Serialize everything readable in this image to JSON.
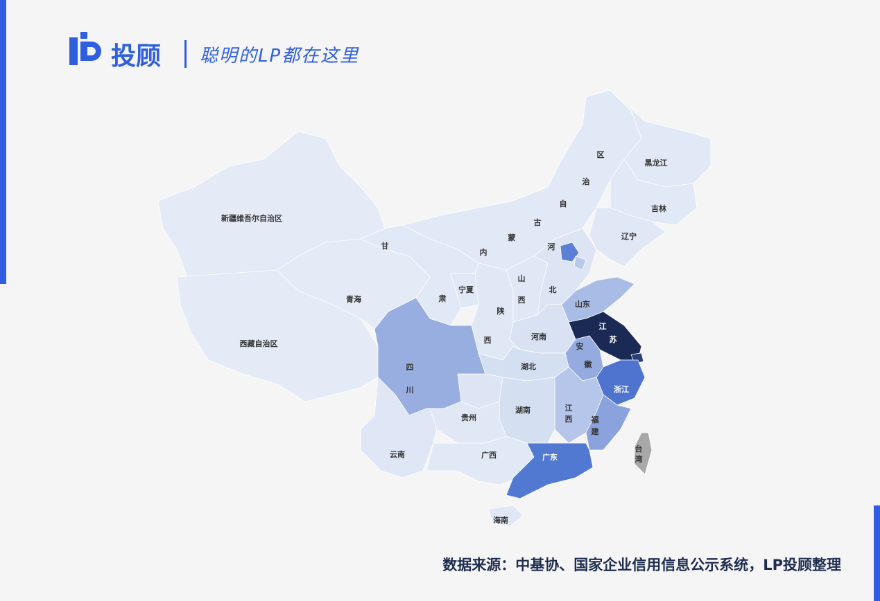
{
  "header": {
    "brand": "投顾",
    "tagline": "聪明的LP都在这里"
  },
  "map": {
    "regions": [
      {
        "labels": [
          "新疆维吾尔自治区"
        ],
        "color": "#e4eaf6"
      },
      {
        "labels": [
          "西藏自治区"
        ],
        "color": "#e4eaf6"
      },
      {
        "labels": [
          "青海"
        ],
        "color": "#e4eaf6"
      },
      {
        "labels": [
          "甘",
          "肃"
        ],
        "color": "#e2e9f6"
      },
      {
        "labels": [
          "内",
          "蒙",
          "古",
          "自",
          "治",
          "区"
        ],
        "color": "#e2e9f6"
      },
      {
        "labels": [
          "黑龙江"
        ],
        "color": "#e2e9f6"
      },
      {
        "labels": [
          "吉林"
        ],
        "color": "#e2e9f6"
      },
      {
        "labels": [
          "辽宁"
        ],
        "color": "#e0e7f5"
      },
      {
        "labels": [
          "宁夏"
        ],
        "color": "#e0e7f5"
      },
      {
        "labels": [
          "陕",
          "西"
        ],
        "color": "#e0e7f5"
      },
      {
        "labels": [
          "山",
          "西"
        ],
        "color": "#e0e7f5"
      },
      {
        "labels": [
          "河",
          "北"
        ],
        "color": "#dde5f4"
      },
      {
        "labels": [],
        "color": "#5b7fd6"
      },
      {
        "labels": [],
        "color": "#b9c9ec"
      },
      {
        "labels": [
          "山东"
        ],
        "color": "#a9bce6"
      },
      {
        "labels": [
          "河南"
        ],
        "color": "#d9e2f3"
      },
      {
        "labels": [
          "江",
          "苏"
        ],
        "color": "#1a2a55"
      },
      {
        "labels": [],
        "color": "#2a3f7a"
      },
      {
        "labels": [
          "安",
          "徽"
        ],
        "color": "#95abe0"
      },
      {
        "labels": [
          "湖北"
        ],
        "color": "#d5dff2"
      },
      {
        "labels": [],
        "color": "#dde5f4"
      },
      {
        "labels": [
          "四",
          "川"
        ],
        "color": "#98ade0"
      },
      {
        "labels": [
          "浙江"
        ],
        "color": "#4f74cf"
      },
      {
        "labels": [
          "江",
          "西"
        ],
        "color": "#b5c6ea"
      },
      {
        "labels": [
          "福",
          "建"
        ],
        "color": "#8aa3dd"
      },
      {
        "labels": [
          "湖南"
        ],
        "color": "#d5dff2"
      },
      {
        "labels": [
          "贵州"
        ],
        "color": "#e0e7f5"
      },
      {
        "labels": [
          "云南"
        ],
        "color": "#dfe6f5"
      },
      {
        "labels": [
          "广西"
        ],
        "color": "#e2e9f6"
      },
      {
        "labels": [
          "广东"
        ],
        "color": "#5279d2"
      },
      {
        "labels": [
          "海南"
        ],
        "color": "#e0e7f5"
      },
      {
        "labels": [
          "台",
          "湾"
        ],
        "color": "#a8a8a8"
      }
    ]
  },
  "footer": {
    "source": "数据来源：中基协、国家企业信用信息公示系统，LP投顾整理"
  }
}
